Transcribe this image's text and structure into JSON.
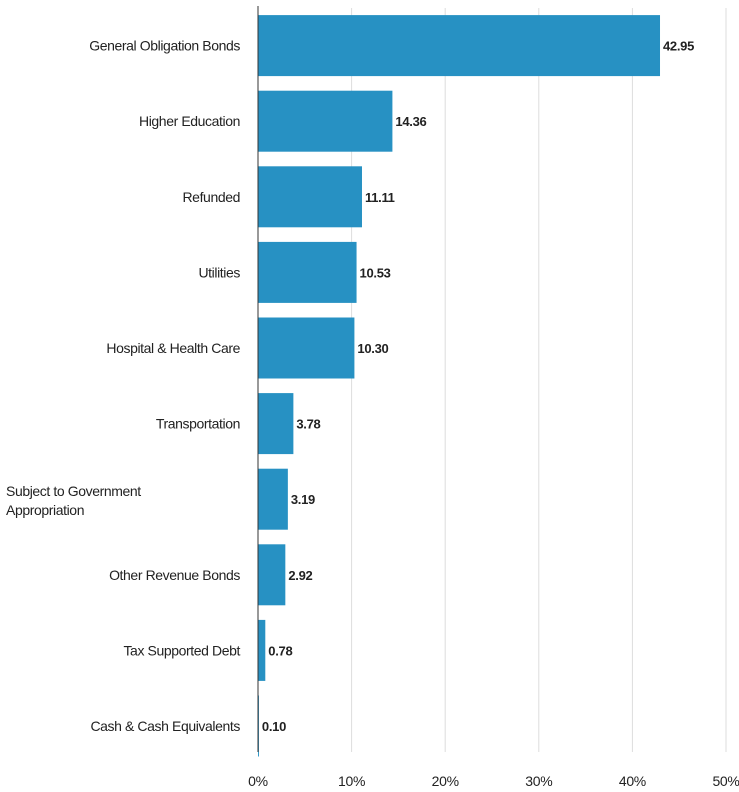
{
  "chart_data": {
    "type": "bar",
    "orientation": "horizontal",
    "categories": [
      "General Obligation Bonds",
      "Higher Education",
      "Refunded",
      "Utilities",
      "Hospital & Health Care",
      "Transportation",
      "Subject to Government Appropriation",
      "Other Revenue Bonds",
      "Tax Supported Debt",
      "Cash & Cash Equivalents"
    ],
    "category_lines": [
      [
        "General Obligation Bonds"
      ],
      [
        "Higher Education"
      ],
      [
        "Refunded"
      ],
      [
        "Utilities"
      ],
      [
        "Hospital & Health Care"
      ],
      [
        "Transportation"
      ],
      [
        "Subject to Government",
        "Appropriation"
      ],
      [
        "Other Revenue Bonds"
      ],
      [
        "Tax Supported Debt"
      ],
      [
        "Cash & Cash Equivalents"
      ]
    ],
    "values": [
      42.95,
      14.36,
      11.11,
      10.53,
      10.3,
      3.78,
      3.19,
      2.92,
      0.78,
      0.1
    ],
    "value_labels": [
      "42.95",
      "14.36",
      "11.11",
      "10.53",
      "10.30",
      "3.78",
      "3.19",
      "2.92",
      "0.78",
      "0.10"
    ],
    "xlim": [
      0,
      50
    ],
    "x_ticks": [
      0,
      10,
      20,
      30,
      40,
      50
    ],
    "x_tick_labels": [
      "0%",
      "10%",
      "20%",
      "30%",
      "40%",
      "50%"
    ],
    "grid": true,
    "bar_color": "#2791c3",
    "gridline_color": "#dddddd",
    "axis_color": "#333333",
    "title": "",
    "xlabel": "",
    "ylabel": ""
  }
}
